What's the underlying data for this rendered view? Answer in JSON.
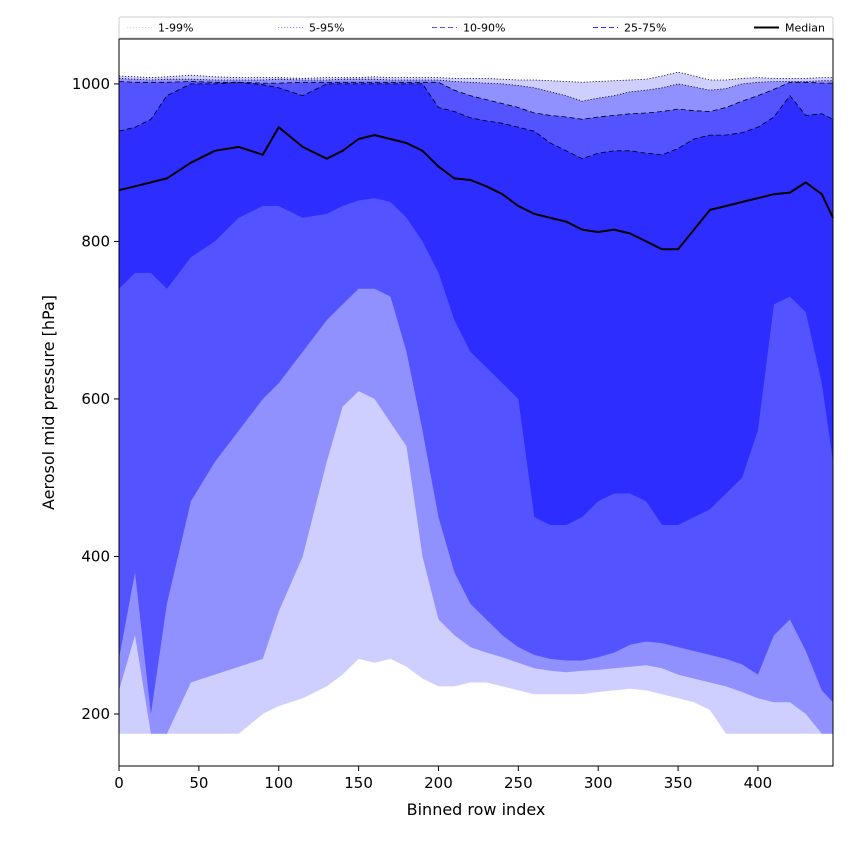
{
  "chart_data": {
    "type": "area",
    "title": "",
    "xlabel": "Binned row index",
    "ylabel": "Aerosol mid pressure [hPa]",
    "xlim": [
      0,
      447
    ],
    "ylim": [
      134,
      1057
    ],
    "x_ticks": [
      0,
      50,
      100,
      150,
      200,
      250,
      300,
      350,
      400
    ],
    "y_ticks": [
      200,
      400,
      600,
      800,
      1000
    ],
    "grid": false,
    "legend_position": "top",
    "x": [
      0,
      10,
      20,
      30,
      45,
      60,
      75,
      90,
      100,
      115,
      130,
      140,
      150,
      160,
      170,
      180,
      190,
      200,
      210,
      220,
      230,
      240,
      250,
      260,
      270,
      280,
      290,
      300,
      310,
      320,
      330,
      340,
      350,
      360,
      370,
      380,
      390,
      400,
      410,
      420,
      430,
      440,
      447
    ],
    "bands": [
      {
        "name": "1-99%",
        "color": "#cfcfff",
        "line_style": "dotted",
        "lower": [
          175,
          175,
          175,
          175,
          175,
          175,
          175,
          200,
          210,
          220,
          235,
          250,
          270,
          265,
          270,
          260,
          245,
          235,
          235,
          240,
          240,
          235,
          230,
          225,
          225,
          225,
          225,
          228,
          230,
          232,
          230,
          225,
          220,
          215,
          205,
          175,
          175,
          175,
          175,
          175,
          175,
          175,
          175
        ],
        "upper": [
          1010,
          1009,
          1008,
          1009,
          1011,
          1009,
          1008,
          1008,
          1008,
          1007,
          1008,
          1008,
          1008,
          1009,
          1008,
          1008,
          1008,
          1008,
          1007,
          1007,
          1007,
          1006,
          1005,
          1005,
          1004,
          1003,
          1002,
          1003,
          1004,
          1005,
          1006,
          1010,
          1015,
          1010,
          1005,
          1005,
          1007,
          1008,
          1007,
          1007,
          1007,
          1008,
          1008
        ]
      },
      {
        "name": "5-95%",
        "color": "#9090ff",
        "line_style": "dotted",
        "lower": [
          230,
          300,
          175,
          175,
          240,
          250,
          260,
          270,
          330,
          400,
          520,
          590,
          610,
          600,
          570,
          540,
          400,
          320,
          300,
          285,
          278,
          272,
          265,
          258,
          255,
          253,
          255,
          256,
          258,
          260,
          262,
          258,
          250,
          245,
          240,
          235,
          228,
          220,
          215,
          215,
          200,
          175,
          175
        ],
        "upper": [
          1007,
          1006,
          1005,
          1006,
          1006,
          1005,
          1005,
          1005,
          1006,
          1005,
          1005,
          1006,
          1006,
          1006,
          1005,
          1005,
          1005,
          1005,
          1003,
          1002,
          1001,
          1000,
          998,
          995,
          990,
          985,
          978,
          982,
          985,
          990,
          992,
          995,
          1000,
          996,
          992,
          994,
          1000,
          1002,
          1003,
          1003,
          1003,
          1004,
          1004
        ]
      },
      {
        "name": "10-90%",
        "color": "#5353ff",
        "line_style": "dashed",
        "lower": [
          270,
          380,
          200,
          340,
          470,
          520,
          560,
          600,
          620,
          660,
          700,
          720,
          740,
          740,
          730,
          660,
          560,
          450,
          380,
          340,
          320,
          300,
          285,
          275,
          270,
          268,
          268,
          272,
          278,
          288,
          292,
          290,
          285,
          280,
          275,
          270,
          263,
          250,
          300,
          320,
          280,
          230,
          215
        ],
        "upper": [
          1003,
          1002,
          1002,
          1002,
          1003,
          1002,
          1002,
          1001,
          1001,
          1002,
          1002,
          1002,
          1002,
          1002,
          1002,
          1002,
          1002,
          1002,
          992,
          985,
          980,
          975,
          970,
          963,
          960,
          958,
          955,
          958,
          960,
          962,
          963,
          965,
          968,
          966,
          965,
          970,
          978,
          985,
          993,
          1002,
          1002,
          1001,
          1001
        ]
      },
      {
        "name": "25-75%",
        "color": "#2d2dff",
        "line_style": "dashed",
        "lower": [
          740,
          760,
          760,
          740,
          780,
          800,
          830,
          845,
          845,
          830,
          835,
          845,
          852,
          855,
          850,
          830,
          800,
          760,
          700,
          660,
          640,
          620,
          600,
          450,
          440,
          440,
          450,
          470,
          480,
          480,
          470,
          440,
          440,
          450,
          460,
          480,
          500,
          560,
          720,
          730,
          710,
          620,
          520
        ],
        "upper": [
          940,
          945,
          955,
          985,
          1000,
          1000,
          1002,
          999,
          995,
          985,
          1000,
          1000,
          1000,
          1000,
          1000,
          1000,
          1000,
          970,
          965,
          957,
          953,
          950,
          945,
          940,
          925,
          915,
          905,
          912,
          915,
          915,
          912,
          910,
          918,
          930,
          935,
          935,
          938,
          945,
          958,
          985,
          960,
          962,
          955
        ]
      }
    ],
    "series": [
      {
        "name": "Median",
        "color": "#000000",
        "values": [
          865,
          870,
          875,
          880,
          900,
          915,
          920,
          910,
          945,
          920,
          905,
          915,
          930,
          935,
          930,
          925,
          915,
          895,
          880,
          878,
          870,
          860,
          845,
          835,
          830,
          825,
          815,
          812,
          815,
          810,
          800,
          790,
          790,
          815,
          840,
          845,
          850,
          855,
          860,
          862,
          875,
          860,
          830
        ]
      }
    ]
  }
}
